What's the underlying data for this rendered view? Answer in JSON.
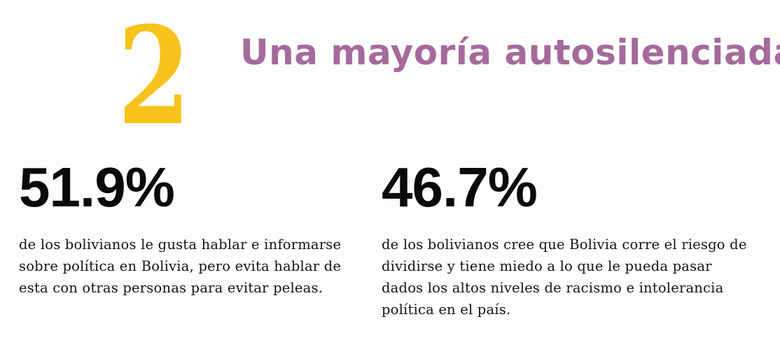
{
  "colors": {
    "number_yellow": "#f7c31c",
    "title_purple": "#a56a9c",
    "text_dark": "#141414"
  },
  "section": {
    "number": "2",
    "title": "Una mayoría autosilenciada"
  },
  "stats": [
    {
      "value": "51.9%",
      "description": "de los bolivianos le gusta hablar e informarse sobre política en Bolivia, pero evita hablar de esta con otras personas para evitar peleas."
    },
    {
      "value": "46.7%",
      "description": "de los bolivianos cree que Bolivia corre el riesgo de dividirse y tiene miedo a lo que le pueda pasar dados los altos niveles de racismo e intolerancia política en el país."
    }
  ]
}
